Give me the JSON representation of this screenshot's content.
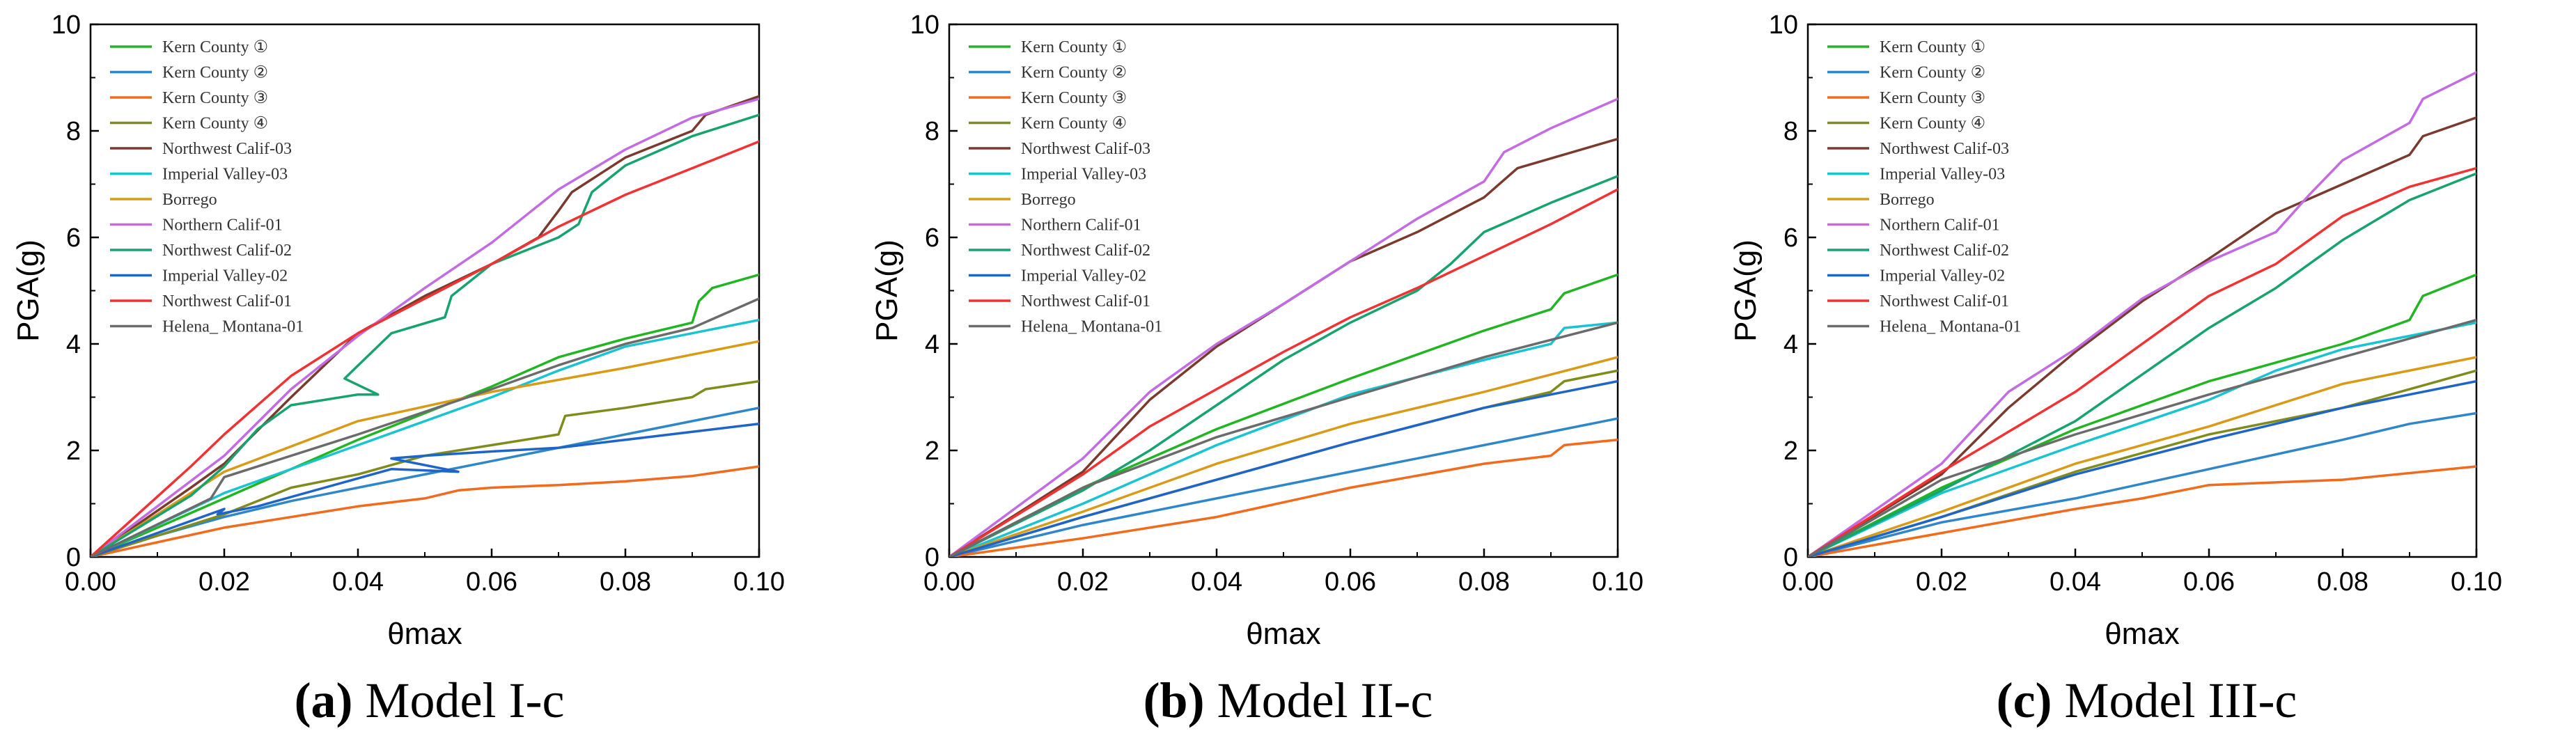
{
  "legend_labels": [
    "Kern County ①",
    "Kern County ②",
    "Kern County ③",
    "Kern County ④",
    "Northwest Calif-03",
    "Imperial Valley-03",
    "Borrego",
    "Northern Calif-01",
    "Northwest Calif-02",
    "Imperial Valley-02",
    "Northwest Calif-01",
    "Helena_ Montana-01"
  ],
  "series_colors": [
    "#22b523",
    "#2f86c9",
    "#f26a1b",
    "#7f8c1b",
    "#7b3a2e",
    "#18c4cf",
    "#d99a18",
    "#c26be3",
    "#16a36e",
    "#1f64c9",
    "#f23232",
    "#6b6b6b"
  ],
  "chart_data": [
    {
      "type": "line",
      "caption_letter": "(a)",
      "caption_text": " Model I-c",
      "xlabel": "θmax",
      "ylabel": "PGA(g)",
      "xlim": [
        0,
        0.1
      ],
      "ylim": [
        0,
        10
      ],
      "xticks": [
        "0.00",
        "0.02",
        "0.04",
        "0.06",
        "0.08",
        "0.10"
      ],
      "yticks": [
        "0",
        "2",
        "4",
        "6",
        "8",
        "10"
      ],
      "legend_position": "top-left",
      "series": [
        {
          "name": "Kern County ①",
          "x": [
            0,
            0.02,
            0.04,
            0.06,
            0.07,
            0.08,
            0.09,
            0.091,
            0.093,
            0.1
          ],
          "y": [
            0,
            1.1,
            2.2,
            3.2,
            3.75,
            4.1,
            4.4,
            4.8,
            5.05,
            5.3
          ]
        },
        {
          "name": "Kern County ②",
          "x": [
            0,
            0.01,
            0.02,
            0.03,
            0.04,
            0.05,
            0.06,
            0.07,
            0.08,
            0.09,
            0.1
          ],
          "y": [
            0,
            0.4,
            0.75,
            1.05,
            1.3,
            1.55,
            1.8,
            2.05,
            2.3,
            2.55,
            2.8
          ]
        },
        {
          "name": "Kern County ③",
          "x": [
            0,
            0.02,
            0.04,
            0.05,
            0.055,
            0.06,
            0.07,
            0.08,
            0.09,
            0.1
          ],
          "y": [
            0,
            0.55,
            0.95,
            1.1,
            1.25,
            1.3,
            1.35,
            1.42,
            1.52,
            1.7
          ]
        },
        {
          "name": "Kern County ④",
          "x": [
            0,
            0.02,
            0.03,
            0.04,
            0.05,
            0.06,
            0.07,
            0.071,
            0.08,
            0.09,
            0.092,
            0.1
          ],
          "y": [
            0,
            0.8,
            1.3,
            1.55,
            1.9,
            2.1,
            2.3,
            2.65,
            2.8,
            3.0,
            3.15,
            3.3
          ]
        },
        {
          "name": "Northwest Calif-03",
          "x": [
            0,
            0.015,
            0.02,
            0.03,
            0.04,
            0.05,
            0.06,
            0.067,
            0.07,
            0.072,
            0.08,
            0.09,
            0.092,
            0.1
          ],
          "y": [
            0,
            1.3,
            1.75,
            3.0,
            4.2,
            4.9,
            5.5,
            6.0,
            6.5,
            6.85,
            7.5,
            8.0,
            8.3,
            8.65
          ]
        },
        {
          "name": "Imperial Valley-03",
          "x": [
            0,
            0.02,
            0.04,
            0.06,
            0.07,
            0.08,
            0.09,
            0.1
          ],
          "y": [
            0,
            1.2,
            2.1,
            3.0,
            3.5,
            3.95,
            4.2,
            4.45
          ]
        },
        {
          "name": "Borrego",
          "x": [
            0,
            0.02,
            0.04,
            0.06,
            0.08,
            0.1
          ],
          "y": [
            0,
            1.6,
            2.55,
            3.1,
            3.55,
            4.05
          ]
        },
        {
          "name": "Northern Calif-01",
          "x": [
            0,
            0.01,
            0.02,
            0.03,
            0.04,
            0.05,
            0.06,
            0.07,
            0.08,
            0.09,
            0.1
          ],
          "y": [
            0,
            0.95,
            1.9,
            3.15,
            4.15,
            5.05,
            5.9,
            6.9,
            7.65,
            8.25,
            8.6
          ]
        },
        {
          "name": "Northwest Calif-02",
          "x": [
            0,
            0.015,
            0.02,
            0.025,
            0.03,
            0.04,
            0.043,
            0.038,
            0.045,
            0.053,
            0.054,
            0.06,
            0.07,
            0.073,
            0.075,
            0.08,
            0.09,
            0.1
          ],
          "y": [
            0,
            1.15,
            1.7,
            2.4,
            2.85,
            3.05,
            3.05,
            3.35,
            4.2,
            4.5,
            4.9,
            5.5,
            6.0,
            6.25,
            6.85,
            7.35,
            7.9,
            8.3
          ]
        },
        {
          "name": "Imperial Valley-02",
          "x": [
            0,
            0.01,
            0.02,
            0.019,
            0.025,
            0.035,
            0.045,
            0.055,
            0.045,
            0.05,
            0.06,
            0.07,
            0.08,
            0.09,
            0.1
          ],
          "y": [
            0,
            0.45,
            0.9,
            0.8,
            0.95,
            1.3,
            1.65,
            1.6,
            1.85,
            1.9,
            1.98,
            2.05,
            2.2,
            2.35,
            2.5
          ]
        },
        {
          "name": "Northwest Calif-01",
          "x": [
            0,
            0.015,
            0.02,
            0.03,
            0.04,
            0.05,
            0.06,
            0.07,
            0.08,
            0.09,
            0.1
          ],
          "y": [
            0,
            1.7,
            2.3,
            3.4,
            4.2,
            4.85,
            5.5,
            6.2,
            6.8,
            7.3,
            7.8
          ]
        },
        {
          "name": "Helena_ Montana-01",
          "x": [
            0,
            0.018,
            0.02,
            0.04,
            0.06,
            0.07,
            0.08,
            0.09,
            0.1
          ],
          "y": [
            0,
            1.1,
            1.5,
            2.3,
            3.15,
            3.6,
            4.0,
            4.3,
            4.85
          ]
        }
      ]
    },
    {
      "type": "line",
      "caption_letter": "(b)",
      "caption_text": " Model II-c",
      "xlabel": "θmax",
      "ylabel": "PGA(g)",
      "xlim": [
        0,
        0.1
      ],
      "ylim": [
        0,
        10
      ],
      "xticks": [
        "0.00",
        "0.02",
        "0.04",
        "0.06",
        "0.08",
        "0.10"
      ],
      "yticks": [
        "0",
        "2",
        "4",
        "6",
        "8",
        "10"
      ],
      "legend_position": "top-left",
      "series": [
        {
          "name": "Kern County ①",
          "x": [
            0,
            0.02,
            0.04,
            0.06,
            0.08,
            0.09,
            0.092,
            0.1
          ],
          "y": [
            0,
            1.3,
            2.4,
            3.35,
            4.25,
            4.65,
            4.95,
            5.3
          ]
        },
        {
          "name": "Kern County ②",
          "x": [
            0,
            0.02,
            0.04,
            0.06,
            0.08,
            0.1
          ],
          "y": [
            0,
            0.6,
            1.1,
            1.6,
            2.1,
            2.6
          ]
        },
        {
          "name": "Kern County ③",
          "x": [
            0,
            0.02,
            0.04,
            0.06,
            0.08,
            0.09,
            0.092,
            0.1
          ],
          "y": [
            0,
            0.35,
            0.75,
            1.3,
            1.75,
            1.9,
            2.1,
            2.2
          ]
        },
        {
          "name": "Kern County ④",
          "x": [
            0,
            0.02,
            0.04,
            0.06,
            0.08,
            0.09,
            0.092,
            0.1
          ],
          "y": [
            0,
            0.75,
            1.45,
            2.15,
            2.8,
            3.1,
            3.3,
            3.5
          ]
        },
        {
          "name": "Northwest Calif-03",
          "x": [
            0,
            0.02,
            0.03,
            0.04,
            0.05,
            0.06,
            0.07,
            0.08,
            0.085,
            0.1
          ],
          "y": [
            0,
            1.6,
            2.95,
            3.95,
            4.75,
            5.55,
            6.1,
            6.75,
            7.3,
            7.85
          ]
        },
        {
          "name": "Imperial Valley-03",
          "x": [
            0,
            0.02,
            0.04,
            0.06,
            0.08,
            0.09,
            0.092,
            0.1
          ],
          "y": [
            0,
            1.0,
            2.1,
            3.05,
            3.7,
            4.0,
            4.3,
            4.4
          ]
        },
        {
          "name": "Borrego",
          "x": [
            0,
            0.02,
            0.04,
            0.06,
            0.08,
            0.1
          ],
          "y": [
            0,
            0.85,
            1.75,
            2.5,
            3.1,
            3.75
          ]
        },
        {
          "name": "Northern Calif-01",
          "x": [
            0,
            0.02,
            0.03,
            0.04,
            0.05,
            0.06,
            0.07,
            0.08,
            0.083,
            0.09,
            0.1
          ],
          "y": [
            0,
            1.85,
            3.1,
            4.0,
            4.75,
            5.55,
            6.35,
            7.05,
            7.6,
            8.05,
            8.6
          ]
        },
        {
          "name": "Northwest Calif-02",
          "x": [
            0,
            0.02,
            0.03,
            0.04,
            0.05,
            0.06,
            0.07,
            0.075,
            0.08,
            0.09,
            0.1
          ],
          "y": [
            0,
            1.25,
            2.0,
            2.85,
            3.7,
            4.4,
            5.0,
            5.5,
            6.1,
            6.65,
            7.15
          ]
        },
        {
          "name": "Imperial Valley-02",
          "x": [
            0,
            0.02,
            0.04,
            0.06,
            0.08,
            0.1
          ],
          "y": [
            0,
            0.75,
            1.45,
            2.15,
            2.8,
            3.3
          ]
        },
        {
          "name": "Northwest Calif-01",
          "x": [
            0,
            0.02,
            0.03,
            0.04,
            0.05,
            0.06,
            0.07,
            0.08,
            0.09,
            0.1
          ],
          "y": [
            0,
            1.55,
            2.45,
            3.15,
            3.85,
            4.5,
            5.05,
            5.65,
            6.25,
            6.9
          ]
        },
        {
          "name": "Helena_ Montana-01",
          "x": [
            0,
            0.02,
            0.04,
            0.06,
            0.08,
            0.1
          ],
          "y": [
            0,
            1.3,
            2.25,
            3.0,
            3.75,
            4.4
          ]
        }
      ]
    },
    {
      "type": "line",
      "caption_letter": "(c)",
      "caption_text": " Model III-c",
      "xlabel": "θmax",
      "ylabel": "PGA(g)",
      "xlim": [
        0,
        0.1
      ],
      "ylim": [
        0,
        10
      ],
      "xticks": [
        "0.00",
        "0.02",
        "0.04",
        "0.06",
        "0.08",
        "0.10"
      ],
      "yticks": [
        "0",
        "2",
        "4",
        "6",
        "8",
        "10"
      ],
      "legend_position": "top-left",
      "series": [
        {
          "name": "Kern County ①",
          "x": [
            0,
            0.02,
            0.04,
            0.06,
            0.08,
            0.09,
            0.092,
            0.1
          ],
          "y": [
            0,
            1.3,
            2.4,
            3.3,
            4.0,
            4.45,
            4.9,
            5.3
          ]
        },
        {
          "name": "Kern County ②",
          "x": [
            0,
            0.02,
            0.04,
            0.06,
            0.08,
            0.09,
            0.1
          ],
          "y": [
            0,
            0.65,
            1.1,
            1.65,
            2.2,
            2.5,
            2.7
          ]
        },
        {
          "name": "Kern County ③",
          "x": [
            0,
            0.02,
            0.04,
            0.05,
            0.06,
            0.08,
            0.1
          ],
          "y": [
            0,
            0.45,
            0.9,
            1.1,
            1.35,
            1.45,
            1.7
          ]
        },
        {
          "name": "Kern County ④",
          "x": [
            0,
            0.02,
            0.04,
            0.06,
            0.08,
            0.1
          ],
          "y": [
            0,
            0.75,
            1.6,
            2.3,
            2.8,
            3.5
          ]
        },
        {
          "name": "Northwest Calif-03",
          "x": [
            0,
            0.02,
            0.03,
            0.04,
            0.05,
            0.06,
            0.07,
            0.08,
            0.09,
            0.092,
            0.1
          ],
          "y": [
            0,
            1.55,
            2.8,
            3.85,
            4.8,
            5.6,
            6.45,
            7.0,
            7.55,
            7.9,
            8.25
          ]
        },
        {
          "name": "Imperial Valley-03",
          "x": [
            0,
            0.02,
            0.04,
            0.06,
            0.07,
            0.08,
            0.1
          ],
          "y": [
            0,
            1.2,
            2.1,
            2.95,
            3.5,
            3.9,
            4.4
          ]
        },
        {
          "name": "Borrego",
          "x": [
            0,
            0.02,
            0.04,
            0.06,
            0.08,
            0.1
          ],
          "y": [
            0,
            0.85,
            1.75,
            2.45,
            3.25,
            3.75
          ]
        },
        {
          "name": "Northern Calif-01",
          "x": [
            0,
            0.02,
            0.03,
            0.04,
            0.05,
            0.06,
            0.07,
            0.075,
            0.08,
            0.09,
            0.092,
            0.1
          ],
          "y": [
            0,
            1.75,
            3.1,
            3.9,
            4.85,
            5.55,
            6.1,
            6.8,
            7.45,
            8.15,
            8.6,
            9.1
          ]
        },
        {
          "name": "Northwest Calif-02",
          "x": [
            0,
            0.02,
            0.04,
            0.06,
            0.07,
            0.075,
            0.08,
            0.09,
            0.1
          ],
          "y": [
            0,
            1.25,
            2.55,
            4.3,
            5.05,
            5.5,
            5.95,
            6.7,
            7.2
          ]
        },
        {
          "name": "Imperial Valley-02",
          "x": [
            0,
            0.02,
            0.04,
            0.06,
            0.08,
            0.1
          ],
          "y": [
            0,
            0.75,
            1.55,
            2.2,
            2.8,
            3.3
          ]
        },
        {
          "name": "Northwest Calif-01",
          "x": [
            0,
            0.02,
            0.04,
            0.06,
            0.07,
            0.08,
            0.09,
            0.1
          ],
          "y": [
            0,
            1.6,
            3.1,
            4.9,
            5.5,
            6.4,
            6.95,
            7.3
          ]
        },
        {
          "name": "Helena_ Montana-01",
          "x": [
            0,
            0.02,
            0.04,
            0.06,
            0.08,
            0.1
          ],
          "y": [
            0,
            1.45,
            2.3,
            3.05,
            3.75,
            4.45
          ]
        }
      ]
    }
  ]
}
